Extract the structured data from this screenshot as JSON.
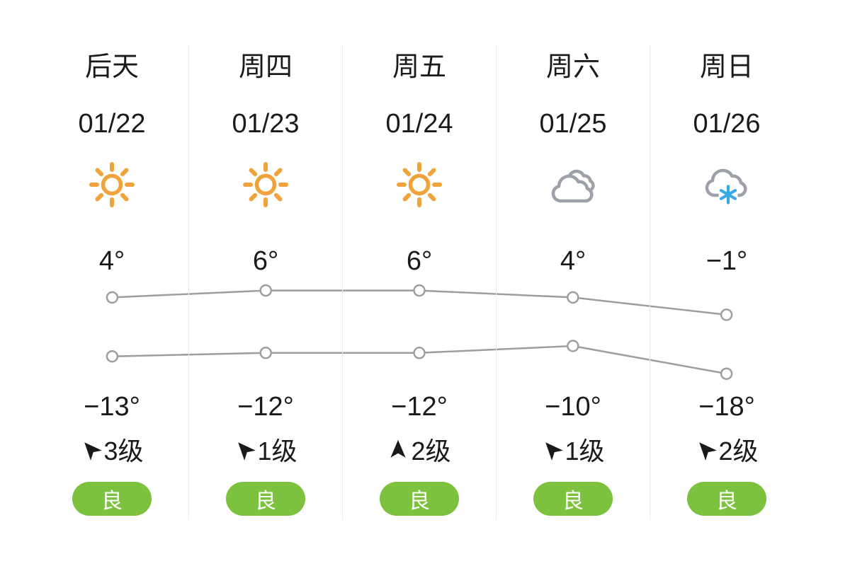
{
  "forecast": {
    "days": [
      {
        "day_name": "后天",
        "date": "01/22",
        "condition": "sunny",
        "condition_icon": "sunny-icon",
        "high_temp_label": "4°",
        "low_temp_label": "−13°",
        "wind": {
          "direction_icon": "wind-arrow-northwest-icon",
          "level_label": "3级"
        },
        "aqi": {
          "label": "良",
          "color": "#7cc23e"
        }
      },
      {
        "day_name": "周四",
        "date": "01/23",
        "condition": "sunny",
        "condition_icon": "sunny-icon",
        "high_temp_label": "6°",
        "low_temp_label": "−12°",
        "wind": {
          "direction_icon": "wind-arrow-northwest-icon",
          "level_label": "1级"
        },
        "aqi": {
          "label": "良",
          "color": "#7cc23e"
        }
      },
      {
        "day_name": "周五",
        "date": "01/24",
        "condition": "sunny",
        "condition_icon": "sunny-icon",
        "high_temp_label": "6°",
        "low_temp_label": "−12°",
        "wind": {
          "direction_icon": "wind-arrow-north-icon",
          "level_label": "2级"
        },
        "aqi": {
          "label": "良",
          "color": "#7cc23e"
        }
      },
      {
        "day_name": "周六",
        "date": "01/25",
        "condition": "cloudy",
        "condition_icon": "cloudy-icon",
        "high_temp_label": "4°",
        "low_temp_label": "−10°",
        "wind": {
          "direction_icon": "wind-arrow-northwest-icon",
          "level_label": "1级"
        },
        "aqi": {
          "label": "良",
          "color": "#7cc23e"
        }
      },
      {
        "day_name": "周日",
        "date": "01/26",
        "condition": "snow",
        "condition_icon": "snow-icon",
        "high_temp_label": "−1°",
        "low_temp_label": "−18°",
        "wind": {
          "direction_icon": "wind-arrow-northwest-icon",
          "level_label": "2级"
        },
        "aqi": {
          "label": "良",
          "color": "#7cc23e"
        }
      }
    ]
  },
  "chart_data": {
    "type": "line",
    "categories": [
      "01/22",
      "01/23",
      "01/24",
      "01/25",
      "01/26"
    ],
    "series": [
      {
        "name": "high_temp_c",
        "values": [
          4,
          6,
          6,
          4,
          -1
        ]
      },
      {
        "name": "low_temp_c",
        "values": [
          -13,
          -12,
          -12,
          -10,
          -18
        ]
      }
    ],
    "unit": "°C",
    "grid": "off",
    "legend": "none",
    "marker": "open-circle",
    "line_color": "#9e9e9e"
  },
  "colors": {
    "text": "#1a1a1a",
    "divider": "#ececec",
    "sun_orange": "#f1a33b",
    "cloud_gray": "#9ca0a8",
    "snow_blue": "#39a9e5",
    "aqi_green": "#7cc23e",
    "chart_line_gray": "#9e9e9e"
  }
}
